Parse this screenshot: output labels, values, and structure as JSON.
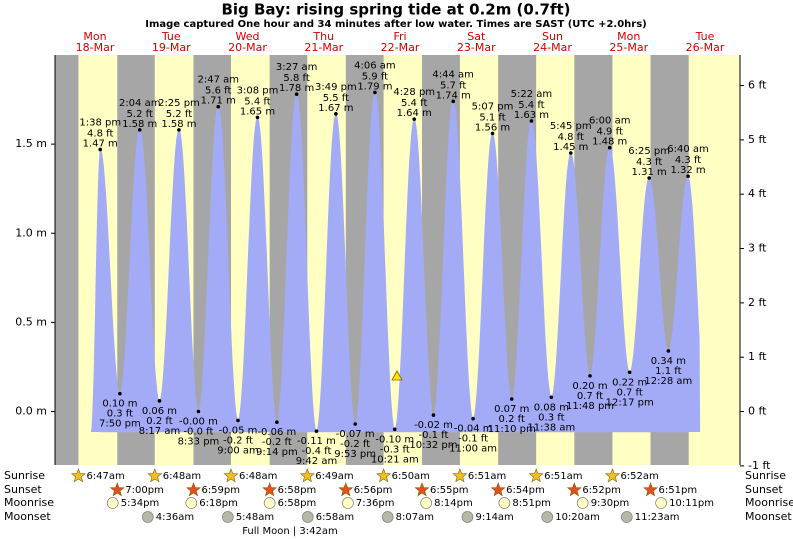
{
  "chart_data": {
    "type": "tide",
    "title": "Big Bay: rising  spring tide at 0.2m (0.7ft)",
    "subtitle": "Image captured One hour and 34 minutes after low water. Times are SAST (UTC +2.0hrs)",
    "ylim": [
      -0.3,
      2.0
    ],
    "yticks": [
      {
        "value": 0,
        "label": "0.0 m"
      },
      {
        "value": 0.5,
        "label": "0.5 m"
      },
      {
        "value": 1.0,
        "label": "1.0 m"
      },
      {
        "value": 1.5,
        "label": "1.5 m"
      }
    ],
    "y2lim": [
      -0.984,
      6.562
    ],
    "y2ticks": [
      {
        "value": -1,
        "label": "-1 ft"
      },
      {
        "value": 0,
        "label": "0 ft"
      },
      {
        "value": 1,
        "label": "1 ft"
      },
      {
        "value": 2,
        "label": "2 ft"
      },
      {
        "value": 3,
        "label": "3 ft"
      },
      {
        "value": 4,
        "label": "4 ft"
      },
      {
        "value": 5,
        "label": "5 ft"
      },
      {
        "value": 6,
        "label": "6 ft"
      }
    ],
    "row_labels": [
      "Sunrise",
      "Sunset",
      "Moonrise",
      "Moonset"
    ],
    "full_moon": "Full Moon | 3:42am",
    "color": "#a3abf7",
    "days": [
      {
        "name": "Mon",
        "date": "18-Mar",
        "sunrise": "6:47am",
        "sunset": "7:00pm",
        "moonrise": "5:34pm",
        "moonset": null,
        "tides": [
          {
            "time": "1:38 pm",
            "height_ft": {
              "value": 4.8,
              "label": "4.8 ft"
            },
            "height_m": {
              "value": 1.47,
              "label": "1.47 m"
            }
          },
          {
            "time": "7:50 pm",
            "height_ft": {
              "value": 0.3,
              "label": "0.3 ft"
            },
            "height_m": {
              "value": 0.1,
              "label": "0.10 m"
            }
          }
        ]
      },
      {
        "name": "Tue",
        "date": "19-Mar",
        "sunrise": "6:48am",
        "sunset": "6:59pm",
        "moonrise": "6:18pm",
        "moonset": "4:36am",
        "tides": [
          {
            "time": "2:04 am",
            "height_ft": {
              "value": 5.2,
              "label": "5.2 ft"
            },
            "height_m": {
              "value": 1.58,
              "label": "1.58 m"
            }
          },
          {
            "time": "8:17 am",
            "height_ft": {
              "value": 0.2,
              "label": "0.2 ft"
            },
            "height_m": {
              "value": 0.06,
              "label": "0.06 m"
            }
          },
          {
            "time": "2:25 pm",
            "height_ft": {
              "value": 5.2,
              "label": "5.2 ft"
            },
            "height_m": {
              "value": 1.58,
              "label": "1.58 m"
            }
          },
          {
            "time": "8:33 pm",
            "height_ft": {
              "value": 0,
              "label": "-0.0 ft"
            },
            "height_m": {
              "value": 0,
              "label": "-0.00 m"
            }
          }
        ]
      },
      {
        "name": "Wed",
        "date": "20-Mar",
        "sunrise": "6:48am",
        "sunset": "6:58pm",
        "moonrise": "6:58pm",
        "moonset": "5:48am",
        "tides": [
          {
            "time": "2:47 am",
            "height_ft": {
              "value": 5.6,
              "label": "5.6 ft"
            },
            "height_m": {
              "value": 1.71,
              "label": "1.71 m"
            }
          },
          {
            "time": "9:00 am",
            "height_ft": {
              "value": -0.2,
              "label": "-0.2 ft"
            },
            "height_m": {
              "value": -0.05,
              "label": "-0.05 m"
            }
          },
          {
            "time": "3:08 pm",
            "height_ft": {
              "value": 5.4,
              "label": "5.4 ft"
            },
            "height_m": {
              "value": 1.65,
              "label": "1.65 m"
            }
          },
          {
            "time": "9:14 pm",
            "height_ft": {
              "value": -0.2,
              "label": "-0.2 ft"
            },
            "height_m": {
              "value": -0.06,
              "label": "-0.06 m"
            }
          }
        ]
      },
      {
        "name": "Thu",
        "date": "21-Mar",
        "sunrise": "6:49am",
        "sunset": "6:56pm",
        "moonrise": "7:36pm",
        "moonset": "6:58am",
        "tides": [
          {
            "time": "3:27 am",
            "height_ft": {
              "value": 5.8,
              "label": "5.8 ft"
            },
            "height_m": {
              "value": 1.78,
              "label": "1.78 m"
            }
          },
          {
            "time": "9:42 am",
            "height_ft": {
              "value": -0.4,
              "label": "-0.4 ft"
            },
            "height_m": {
              "value": -0.11,
              "label": "-0.11 m"
            }
          },
          {
            "time": "3:49 pm",
            "height_ft": {
              "value": 5.5,
              "label": "5.5 ft"
            },
            "height_m": {
              "value": 1.67,
              "label": "1.67 m"
            }
          },
          {
            "time": "9:53 pm",
            "height_ft": {
              "value": -0.2,
              "label": "-0.2 ft"
            },
            "height_m": {
              "value": -0.07,
              "label": "-0.07 m"
            }
          }
        ]
      },
      {
        "name": "Fri",
        "date": "22-Mar",
        "sunrise": "6:50am",
        "sunset": "6:55pm",
        "moonrise": "8:14pm",
        "moonset": "8:07am",
        "tides": [
          {
            "time": "4:06 am",
            "height_ft": {
              "value": 5.9,
              "label": "5.9 ft"
            },
            "height_m": {
              "value": 1.79,
              "label": "1.79 m"
            }
          },
          {
            "time": "10:21 am",
            "height_ft": {
              "value": -0.3,
              "label": "-0.3 ft"
            },
            "height_m": {
              "value": -0.1,
              "label": "-0.10 m"
            }
          },
          {
            "time": "4:28 pm",
            "height_ft": {
              "value": 5.4,
              "label": "5.4 ft"
            },
            "height_m": {
              "value": 1.64,
              "label": "1.64 m"
            }
          },
          {
            "time": "10:32 pm",
            "height_ft": {
              "value": -0.1,
              "label": "-0.1 ft"
            },
            "height_m": {
              "value": -0.02,
              "label": "-0.02 m"
            }
          }
        ]
      },
      {
        "name": "Sat",
        "date": "23-Mar",
        "sunrise": "6:51am",
        "sunset": "6:54pm",
        "moonrise": "8:51pm",
        "moonset": "9:14am",
        "tides": [
          {
            "time": "4:44 am",
            "height_ft": {
              "value": 5.7,
              "label": "5.7 ft"
            },
            "height_m": {
              "value": 1.74,
              "label": "1.74 m"
            }
          },
          {
            "time": "11:00 am",
            "height_ft": {
              "value": -0.1,
              "label": "-0.1 ft"
            },
            "height_m": {
              "value": -0.04,
              "label": "-0.04 m"
            }
          },
          {
            "time": "5:07 pm",
            "height_ft": {
              "value": 5.1,
              "label": "5.1 ft"
            },
            "height_m": {
              "value": 1.56,
              "label": "1.56 m"
            }
          },
          {
            "time": "11:10 pm",
            "height_ft": {
              "value": 0.2,
              "label": "0.2 ft"
            },
            "height_m": {
              "value": 0.07,
              "label": "0.07 m"
            }
          }
        ]
      },
      {
        "name": "Sun",
        "date": "24-Mar",
        "sunrise": "6:51am",
        "sunset": "6:52pm",
        "moonrise": "9:30pm",
        "moonset": "10:20am",
        "tides": [
          {
            "time": "5:22 am",
            "height_ft": {
              "value": 5.4,
              "label": "5.4 ft"
            },
            "height_m": {
              "value": 1.63,
              "label": "1.63 m"
            }
          },
          {
            "time": "11:38 am",
            "height_ft": {
              "value": 0.3,
              "label": "0.3 ft"
            },
            "height_m": {
              "value": 0.08,
              "label": "0.08 m"
            }
          },
          {
            "time": "5:45 pm",
            "height_ft": {
              "value": 4.8,
              "label": "4.8 ft"
            },
            "height_m": {
              "value": 1.45,
              "label": "1.45 m"
            }
          },
          {
            "time": "11:48 pm",
            "height_ft": {
              "value": 0.7,
              "label": "0.7 ft"
            },
            "height_m": {
              "value": 0.2,
              "label": "0.20 m"
            }
          }
        ]
      },
      {
        "name": "Mon",
        "date": "25-Mar",
        "sunrise": "6:52am",
        "sunset": "6:51pm",
        "moonrise": "10:11pm",
        "moonset": "11:23am",
        "tides": [
          {
            "time": "6:00 am",
            "height_ft": {
              "value": 4.9,
              "label": "4.9 ft"
            },
            "height_m": {
              "value": 1.48,
              "label": "1.48 m"
            }
          },
          {
            "time": "12:17 pm",
            "height_ft": {
              "value": 0.7,
              "label": "0.7 ft"
            },
            "height_m": {
              "value": 0.22,
              "label": "0.22 m"
            }
          },
          {
            "time": "6:25 pm",
            "height_ft": {
              "value": 4.3,
              "label": "4.3 ft"
            },
            "height_m": {
              "value": 1.31,
              "label": "1.31 m"
            }
          }
        ]
      },
      {
        "name": "Tue",
        "date": "26-Mar",
        "sunrise": null,
        "sunset": null,
        "moonrise": null,
        "moonset": null,
        "tides": [
          {
            "time": "12:28 am",
            "height_ft": {
              "value": 1.1,
              "label": "1.1 ft"
            },
            "height_m": {
              "value": 0.34,
              "label": "0.34 m"
            }
          },
          {
            "time": "6:40 am",
            "height_ft": {
              "value": 4.3,
              "label": "4.3 ft"
            },
            "height_m": {
              "value": 1.32,
              "label": "1.32 m"
            }
          }
        ]
      }
    ]
  }
}
